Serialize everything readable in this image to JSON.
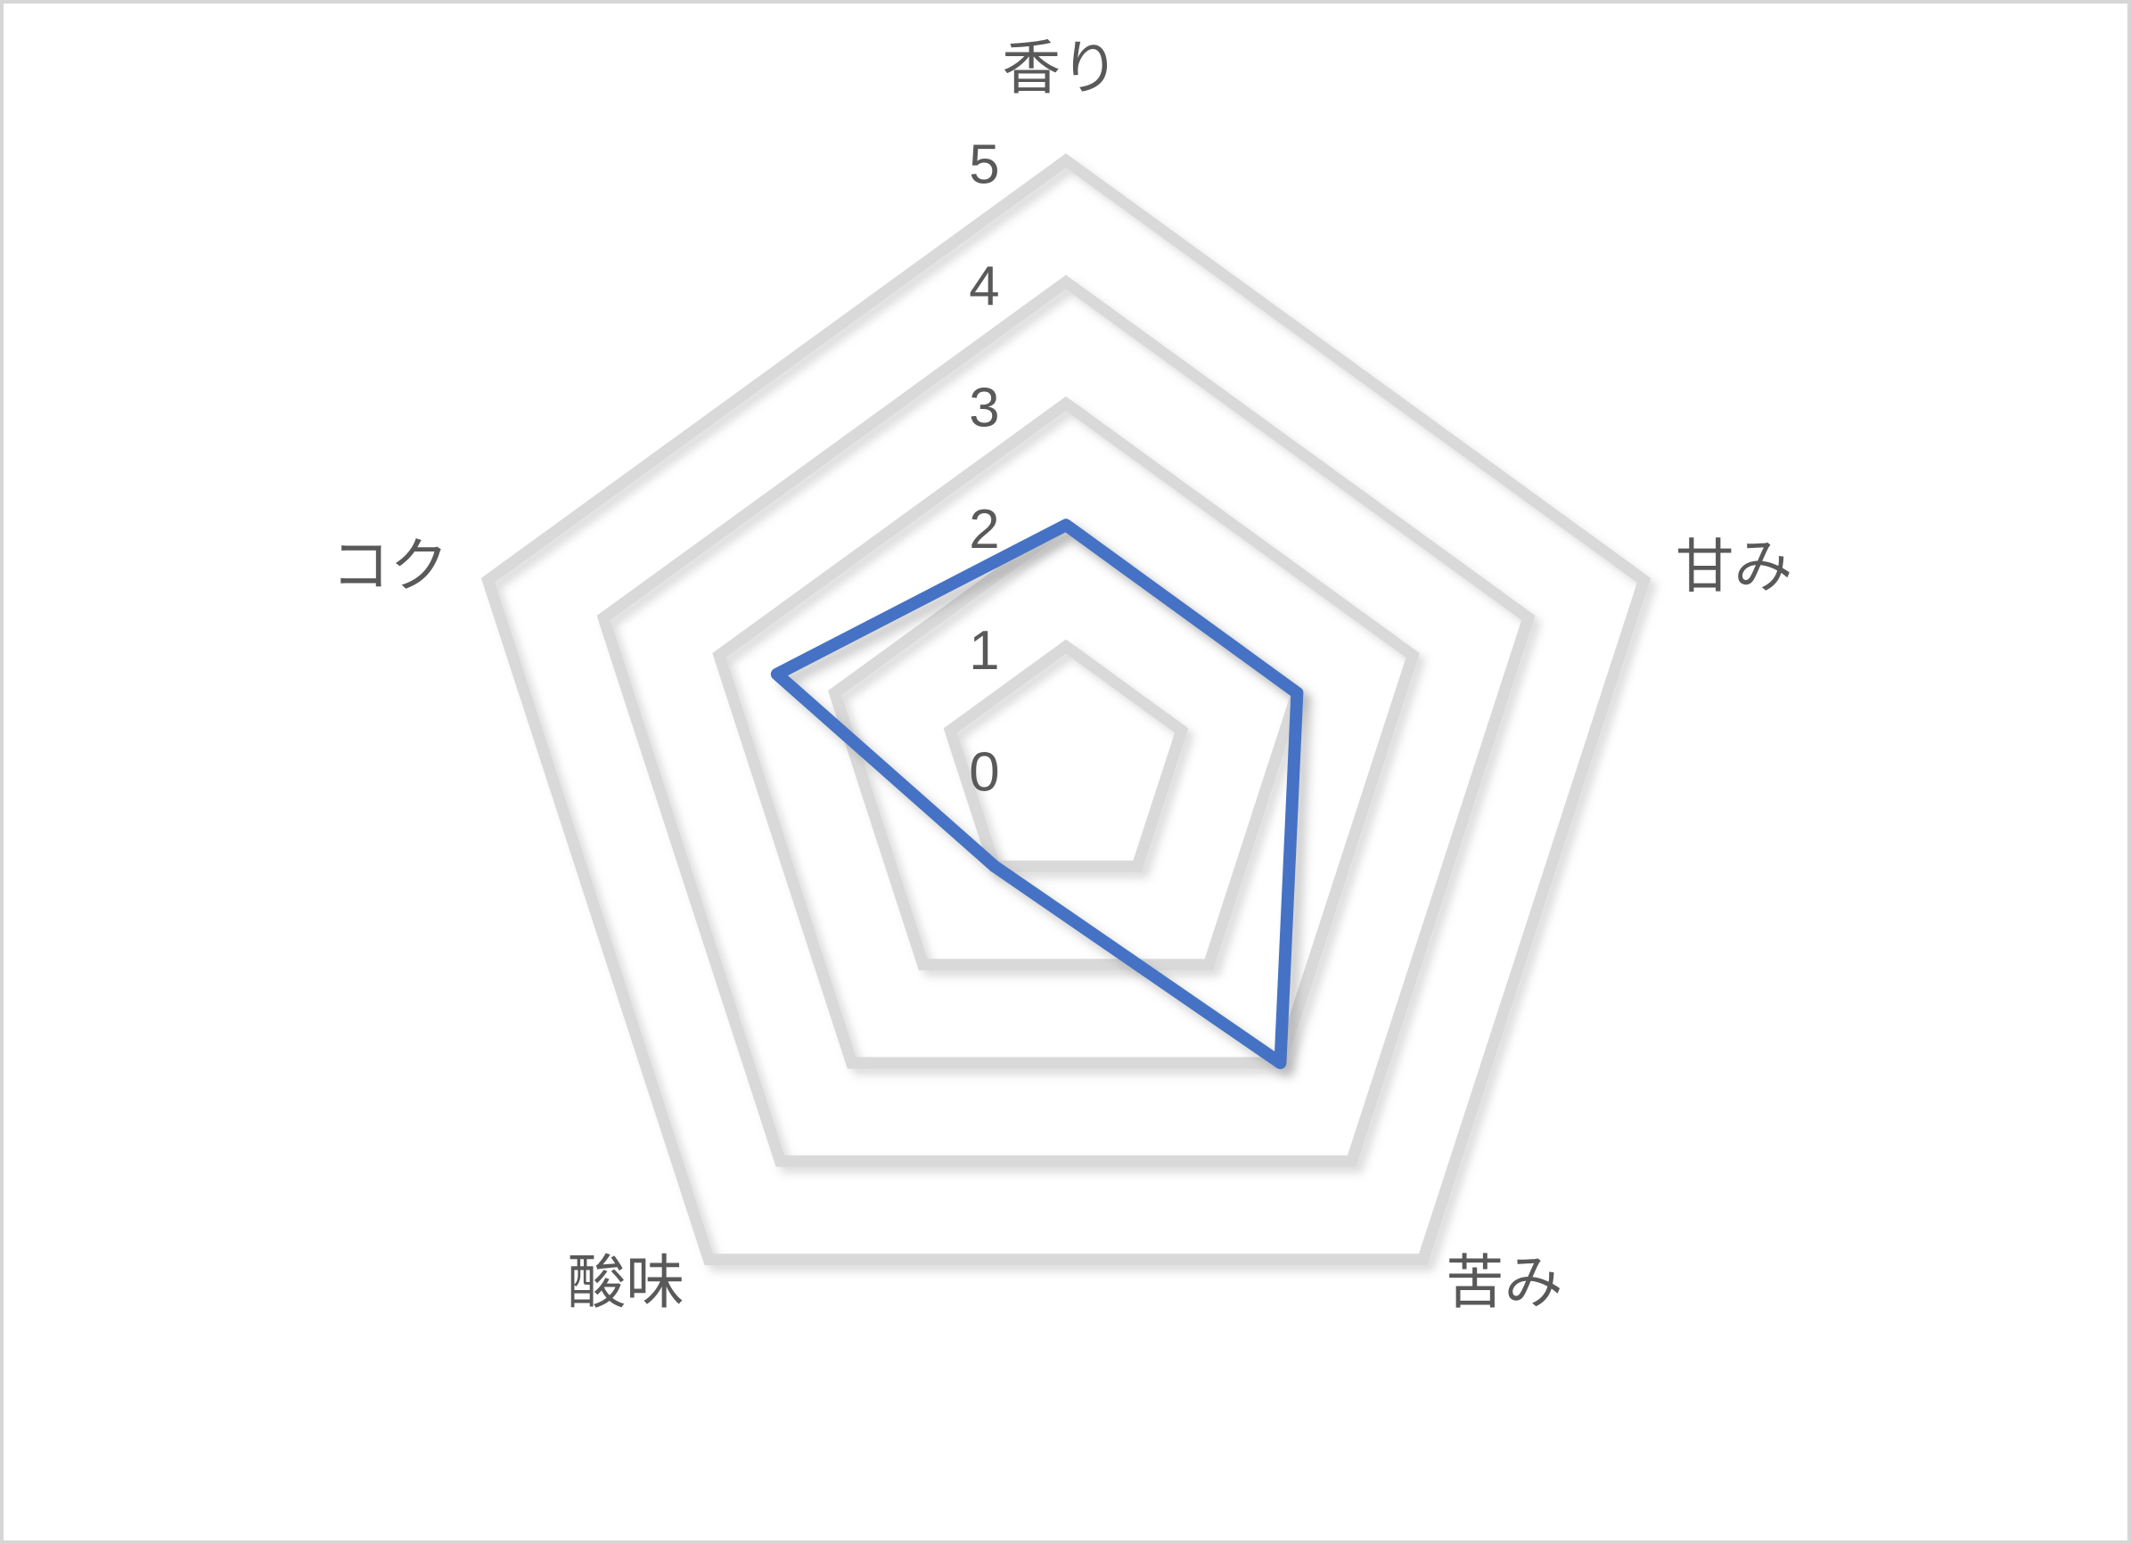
{
  "chart_data": {
    "type": "radar",
    "title": "",
    "categories": [
      "香り",
      "甘み",
      "苦み",
      "酸味",
      "コク"
    ],
    "series": [
      {
        "name": "",
        "values": [
          2,
          2,
          3,
          1,
          2.5
        ]
      }
    ],
    "axis": {
      "min": 0,
      "max": 5,
      "step": 1,
      "tick_labels": [
        "5",
        "4",
        "3",
        "2",
        "1",
        "0"
      ]
    },
    "grid": {
      "shape": "pentagon",
      "rings": [
        1,
        2,
        3,
        4,
        5
      ],
      "spokes_visible": false
    },
    "legend": {
      "visible": false
    },
    "colors": {
      "series_line": "#4472C4",
      "grid_line": "#D9D9D9",
      "text": "#595959",
      "frame_border": "#D6D6D6",
      "background": "#FFFFFF"
    }
  }
}
